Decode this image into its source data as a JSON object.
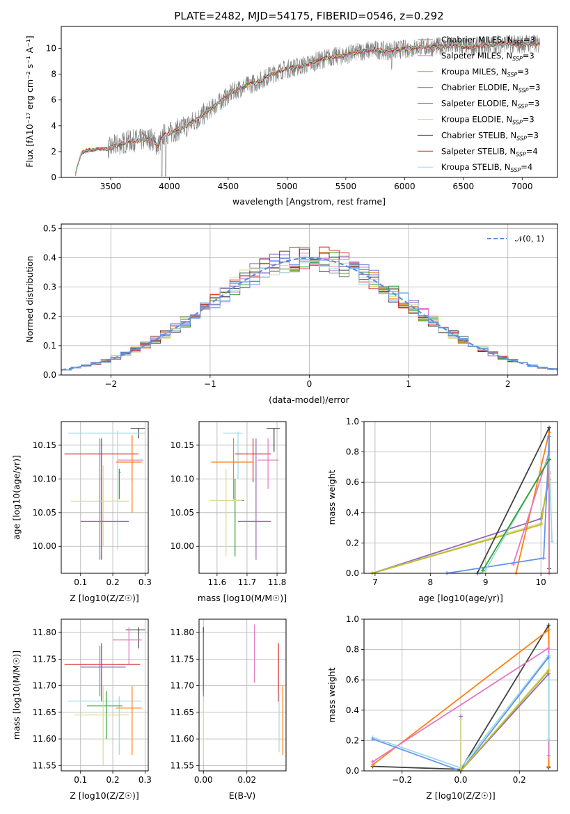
{
  "chart_data": [
    {
      "id": "spectrum",
      "type": "line",
      "title": "PLATE=2482, MJD=54175, FIBERID=0546, z=0.292",
      "xlabel": "wavelength [Angstrom, rest frame]",
      "ylabel": "Flux [fλ10⁻¹⁷ erg cm⁻² s⁻¹ A⁻¹]",
      "xlim": [
        3080,
        7300
      ],
      "ylim": [
        0,
        11.7
      ],
      "xticks": [
        3500,
        4000,
        4500,
        5000,
        5500,
        6000,
        6500,
        7000
      ],
      "yticks": [
        0,
        2,
        4,
        6,
        8,
        10
      ],
      "legend_position": "top-right",
      "colors": {
        "data": "#808080"
      },
      "continuum": {
        "x": [
          3200,
          3250,
          3300,
          3400,
          3480,
          3550,
          3650,
          3750,
          3850,
          3900,
          3950,
          4050,
          4150,
          4250,
          4350,
          4450,
          4550,
          4650,
          4750,
          4850,
          4950,
          5050,
          5150,
          5250,
          5350,
          5450,
          5550,
          5650,
          5750,
          5850,
          5950,
          6050,
          6150,
          6250,
          6350,
          6450,
          6550,
          6650,
          6750,
          6850,
          6950,
          7050,
          7150
        ],
        "y": [
          0.3,
          1.9,
          2.1,
          2.2,
          2.2,
          2.5,
          2.8,
          2.9,
          3.0,
          2.4,
          3.3,
          3.6,
          4.0,
          4.6,
          5.3,
          6.0,
          6.7,
          7.1,
          7.4,
          7.9,
          8.3,
          8.5,
          8.7,
          9.0,
          9.3,
          9.4,
          9.6,
          9.8,
          9.9,
          9.8,
          9.9,
          10.0,
          10.1,
          10.1,
          10.2,
          10.2,
          10.1,
          10.2,
          10.3,
          10.4,
          10.3,
          10.4,
          10.3
        ]
      },
      "series": [
        {
          "name": "Chabrier MILES, N_SSP=3",
          "color": "#808080"
        },
        {
          "name": "Salpeter MILES, N_SSP=3",
          "color": "#e377c2"
        },
        {
          "name": "Kroupa MILES, N_SSP=3",
          "color": "#ff7f0e"
        },
        {
          "name": "Chabrier ELODIE, N_SSP=3",
          "color": "#2ca02c"
        },
        {
          "name": "Salpeter ELODIE, N_SSP=3",
          "color": "#9467bd"
        },
        {
          "name": "Kroupa ELODIE, N_SSP=3",
          "color": "#dbdb8d"
        },
        {
          "name": "Chabrier STELIB, N_SSP=3",
          "color": "#404040"
        },
        {
          "name": "Salpeter STELIB, N_SSP=4",
          "color": "#d62728"
        },
        {
          "name": "Kroupa STELIB, N_SSP=4",
          "color": "#9edae5"
        }
      ]
    },
    {
      "id": "residuals",
      "type": "line",
      "xlabel": "(data-model)/error",
      "ylabel": "Normed distribution",
      "xlim": [
        -2.5,
        2.5
      ],
      "ylim": [
        0,
        0.515
      ],
      "xticks": [
        -2,
        -1,
        0,
        1,
        2
      ],
      "yticks": [
        0.0,
        0.1,
        0.2,
        0.3,
        0.4,
        0.5
      ],
      "grid": true,
      "legend_position": "top-right",
      "reference": {
        "name": "𝒩(0, 1)",
        "color": "#5b8fd9",
        "style": "dashed"
      },
      "series_colors": [
        "#808080",
        "#e377c2",
        "#ff7f0e",
        "#2ca02c",
        "#9467bd",
        "#dbdb8d",
        "#404040",
        "#d62728",
        "#9edae5",
        "#6495ed"
      ],
      "bin_width": 0.1,
      "bin_start": -2.5
    },
    {
      "id": "age_vs_Z",
      "type": "scatter",
      "xlabel": "Z [log10(Z/Z☉)]",
      "ylabel": "age  [log10(age/yr)]",
      "xlim": [
        0.04,
        0.31
      ],
      "ylim": [
        9.96,
        10.185
      ],
      "xticks": [
        0.1,
        0.2,
        0.3
      ],
      "yticks": [
        10.0,
        10.05,
        10.1,
        10.15
      ],
      "grid": true,
      "points": [
        {
          "x": 0.28,
          "y": 10.175,
          "xerr": [
            0.255,
            0.3
          ],
          "yerr": [
            10.16,
            10.175
          ],
          "color": "#404040"
        },
        {
          "x": 0.215,
          "y": 10.168,
          "xerr": [
            0.06,
            0.3
          ],
          "yerr": [
            9.995,
            10.172
          ],
          "color": "#9edae5"
        },
        {
          "x": 0.165,
          "y": 10.137,
          "xerr": [
            0.05,
            0.28
          ],
          "yerr": [
            9.98,
            10.16
          ],
          "color": "#d62728"
        },
        {
          "x": 0.26,
          "y": 10.128,
          "xerr": [
            0.215,
            0.295
          ],
          "yerr": [
            10.095,
            10.165
          ],
          "color": "#e377c2"
        },
        {
          "x": 0.26,
          "y": 10.125,
          "xerr": [
            0.21,
            0.29
          ],
          "yerr": [
            10.05,
            10.165
          ],
          "color": "#ff7f0e"
        },
        {
          "x": 0.22,
          "y": 10.11,
          "xerr": [
            0.22,
            0.225
          ],
          "yerr": [
            10.07,
            10.115
          ],
          "color": "#2ca02c"
        },
        {
          "x": 0.17,
          "y": 10.067,
          "xerr": [
            0.07,
            0.25
          ],
          "yerr": [
            10.0,
            10.12
          ],
          "color": "#dbdb8d"
        },
        {
          "x": 0.16,
          "y": 10.037,
          "xerr": [
            0.1,
            0.25
          ],
          "yerr": [
            9.98,
            10.16
          ],
          "color": "#9467bd"
        }
      ]
    },
    {
      "id": "age_vs_mass",
      "type": "scatter",
      "xlabel": "mass [log10(M/M☉)]",
      "ylabel": "",
      "xlim": [
        11.54,
        11.83
      ],
      "ylim": [
        9.96,
        10.185
      ],
      "xticks": [
        11.6,
        11.7,
        11.8
      ],
      "yticks": [
        10.0,
        10.05,
        10.1,
        10.15
      ],
      "grid": true,
      "points": [
        {
          "x": 11.79,
          "y": 10.175,
          "xerr": [
            11.765,
            11.81
          ],
          "yerr": [
            10.14,
            10.175
          ],
          "color": "#404040"
        },
        {
          "x": 11.67,
          "y": 10.168,
          "xerr": [
            11.62,
            11.685
          ],
          "yerr": [
            10.1,
            10.17
          ],
          "color": "#9edae5"
        },
        {
          "x": 11.72,
          "y": 10.137,
          "xerr": [
            11.66,
            11.78
          ],
          "yerr": [
            10.095,
            10.16
          ],
          "color": "#d62728"
        },
        {
          "x": 11.77,
          "y": 10.128,
          "xerr": [
            11.735,
            11.805
          ],
          "yerr": [
            10.085,
            10.16
          ],
          "color": "#e377c2"
        },
        {
          "x": 11.655,
          "y": 10.125,
          "xerr": [
            11.58,
            11.72
          ],
          "yerr": [
            10.07,
            10.16
          ],
          "color": "#ff7f0e"
        },
        {
          "x": 11.66,
          "y": 10.068,
          "xerr": [
            11.65,
            11.69
          ],
          "yerr": [
            9.985,
            10.1
          ],
          "color": "#2ca02c"
        },
        {
          "x": 11.63,
          "y": 10.068,
          "xerr": [
            11.575,
            11.685
          ],
          "yerr": [
            9.985,
            10.115
          ],
          "color": "#dbdb8d"
        },
        {
          "x": 11.73,
          "y": 10.037,
          "xerr": [
            11.67,
            11.78
          ],
          "yerr": [
            9.98,
            10.16
          ],
          "color": "#9467bd"
        }
      ]
    },
    {
      "id": "weight_vs_age",
      "type": "line",
      "xlabel": "age  [log10(age/yr)]",
      "ylabel": "mass weight",
      "xlim": [
        6.8,
        10.3
      ],
      "ylim": [
        0,
        1.0
      ],
      "xticks": [
        7,
        8,
        9,
        10
      ],
      "yticks": [
        0.0,
        0.2,
        0.4,
        0.6,
        0.8,
        1.0
      ],
      "grid": true,
      "series": [
        {
          "color": "#9467bd",
          "x": [
            6.95,
            10.0,
            10.15
          ],
          "y": [
            0.0,
            0.36,
            0.62
          ]
        },
        {
          "color": "#dbdb8d",
          "x": [
            6.95,
            10.0,
            10.15
          ],
          "y": [
            0.0,
            0.33,
            0.67
          ]
        },
        {
          "color": "#bcbd22",
          "x": [
            6.95,
            10.0,
            10.15
          ],
          "y": [
            0.0,
            0.32,
            0.66
          ]
        },
        {
          "color": "#404040",
          "x": [
            8.85,
            10.15,
            10.15
          ],
          "y": [
            0.0,
            0.96,
            0.03
          ]
        },
        {
          "color": "#ff7f0e",
          "x": [
            9.55,
            10.15,
            10.15
          ],
          "y": [
            0.0,
            0.93,
            0.0
          ]
        },
        {
          "color": "#e377c2",
          "x": [
            9.5,
            10.15,
            10.15
          ],
          "y": [
            0.06,
            0.8,
            0.0
          ]
        },
        {
          "color": "#6495ed",
          "x": [
            8.3,
            10.05,
            10.15
          ],
          "y": [
            0.0,
            0.1,
            0.9
          ]
        },
        {
          "color": "#9edae5",
          "x": [
            8.9,
            9.0,
            10.15,
            10.2
          ],
          "y": [
            0.0,
            0.02,
            0.76,
            0.21
          ]
        },
        {
          "color": "#2ca02c",
          "x": [
            8.95,
            10.15
          ],
          "y": [
            0.02,
            0.75
          ]
        }
      ]
    },
    {
      "id": "mass_vs_Z",
      "type": "scatter",
      "xlabel": "Z [log10(Z/Z☉)]",
      "ylabel": "mass [log10(M/M☉)]",
      "xlim": [
        0.04,
        0.31
      ],
      "ylim": [
        11.54,
        11.825
      ],
      "xticks": [
        0.1,
        0.2,
        0.3
      ],
      "yticks": [
        11.55,
        11.6,
        11.65,
        11.7,
        11.75,
        11.8
      ],
      "grid": true,
      "points": [
        {
          "x": 0.28,
          "y": 11.805,
          "xerr": [
            0.24,
            0.3
          ],
          "yerr": [
            11.77,
            11.81
          ],
          "color": "#404040"
        },
        {
          "x": 0.25,
          "y": 11.786,
          "xerr": [
            0.2,
            0.29
          ],
          "yerr": [
            11.74,
            11.81
          ],
          "color": "#e377c2"
        },
        {
          "x": 0.165,
          "y": 11.74,
          "xerr": [
            0.05,
            0.285
          ],
          "yerr": [
            11.67,
            11.78
          ],
          "color": "#d62728"
        },
        {
          "x": 0.16,
          "y": 11.735,
          "xerr": [
            0.1,
            0.24
          ],
          "yerr": [
            11.68,
            11.775
          ],
          "color": "#9467bd"
        },
        {
          "x": 0.22,
          "y": 11.671,
          "xerr": [
            0.06,
            0.29
          ],
          "yerr": [
            11.57,
            11.68
          ],
          "color": "#9edae5"
        },
        {
          "x": 0.26,
          "y": 11.658,
          "xerr": [
            0.21,
            0.29
          ],
          "yerr": [
            11.57,
            11.7
          ],
          "color": "#ff7f0e"
        },
        {
          "x": 0.18,
          "y": 11.662,
          "xerr": [
            0.12,
            0.23
          ],
          "yerr": [
            11.6,
            11.69
          ],
          "color": "#2ca02c"
        },
        {
          "x": 0.17,
          "y": 11.645,
          "xerr": [
            0.08,
            0.25
          ],
          "yerr": [
            11.55,
            11.7
          ],
          "color": "#dbdb8d"
        }
      ]
    },
    {
      "id": "mass_vs_ebv",
      "type": "scatter",
      "xlabel": "E(B-V)",
      "ylabel": "",
      "xlim": [
        -0.002,
        0.038
      ],
      "ylim": [
        11.54,
        11.825
      ],
      "xticks": [
        0.0,
        0.02
      ],
      "yticks": [
        11.55,
        11.6,
        11.65,
        11.7,
        11.75,
        11.8
      ],
      "grid": true,
      "points": [
        {
          "x": 0.0,
          "y": 11.75,
          "xerr": [
            0.0,
            0.0
          ],
          "yerr": [
            11.69,
            11.81
          ],
          "color": "#404040"
        },
        {
          "x": 0.0,
          "y": 11.74,
          "xerr": [
            0.0,
            0.0
          ],
          "yerr": [
            11.68,
            11.8
          ],
          "color": "#9467bd"
        },
        {
          "x": 0.0,
          "y": 11.62,
          "xerr": [
            0.0,
            0.0
          ],
          "yerr": [
            11.56,
            11.67
          ],
          "color": "#dbdb8d"
        },
        {
          "x": 0.0235,
          "y": 11.76,
          "xerr": [
            0.0235,
            0.0235
          ],
          "yerr": [
            11.705,
            11.815
          ],
          "color": "#e377c2"
        },
        {
          "x": 0.0345,
          "y": 11.73,
          "xerr": [
            0.0345,
            0.0345
          ],
          "yerr": [
            11.67,
            11.78
          ],
          "color": "#d62728"
        },
        {
          "x": 0.0348,
          "y": 11.63,
          "xerr": [
            0.0348,
            0.0348
          ],
          "yerr": [
            11.575,
            11.685
          ],
          "color": "#9edae5"
        },
        {
          "x": 0.0365,
          "y": 11.64,
          "xerr": [
            0.0365,
            0.0365
          ],
          "yerr": [
            11.57,
            11.7
          ],
          "color": "#ff7f0e"
        }
      ]
    },
    {
      "id": "weight_vs_Z",
      "type": "line",
      "xlabel": "Z [log10(Z/Z☉)]",
      "ylabel": "mass weight",
      "xlim": [
        -0.33,
        0.33
      ],
      "ylim": [
        0,
        1.0
      ],
      "xticks": [
        -0.2,
        0.0,
        0.2
      ],
      "yticks": [
        0.0,
        0.2,
        0.4,
        0.6,
        0.8,
        1.0
      ],
      "grid": true,
      "series": [
        {
          "color": "#404040",
          "x": [
            -0.3,
            0.0,
            0.3,
            0.3
          ],
          "y": [
            0.03,
            0.01,
            0.96,
            0.02
          ]
        },
        {
          "color": "#ff7f0e",
          "x": [
            -0.3,
            0.3,
            0.3
          ],
          "y": [
            0.04,
            0.93,
            0.03
          ]
        },
        {
          "color": "#e377c2",
          "x": [
            -0.3,
            0.3,
            0.3
          ],
          "y": [
            0.06,
            0.81,
            0.1
          ]
        },
        {
          "color": "#9edae5",
          "x": [
            -0.3,
            0.0,
            0.3,
            0.3
          ],
          "y": [
            0.22,
            0.02,
            0.76,
            0.21
          ]
        },
        {
          "color": "#6495ed",
          "x": [
            -0.3,
            0.0,
            0.3
          ],
          "y": [
            0.21,
            0.0,
            0.75
          ]
        },
        {
          "color": "#9467bd",
          "x": [
            0.0,
            0.0,
            0.3
          ],
          "y": [
            0.36,
            0.0,
            0.64
          ]
        },
        {
          "color": "#dbdb8d",
          "x": [
            0.0,
            0.0,
            0.3
          ],
          "y": [
            0.34,
            0.0,
            0.67
          ]
        },
        {
          "color": "#bcbd22",
          "x": [
            0.0,
            0.3
          ],
          "y": [
            0.0,
            0.66
          ]
        }
      ]
    }
  ]
}
